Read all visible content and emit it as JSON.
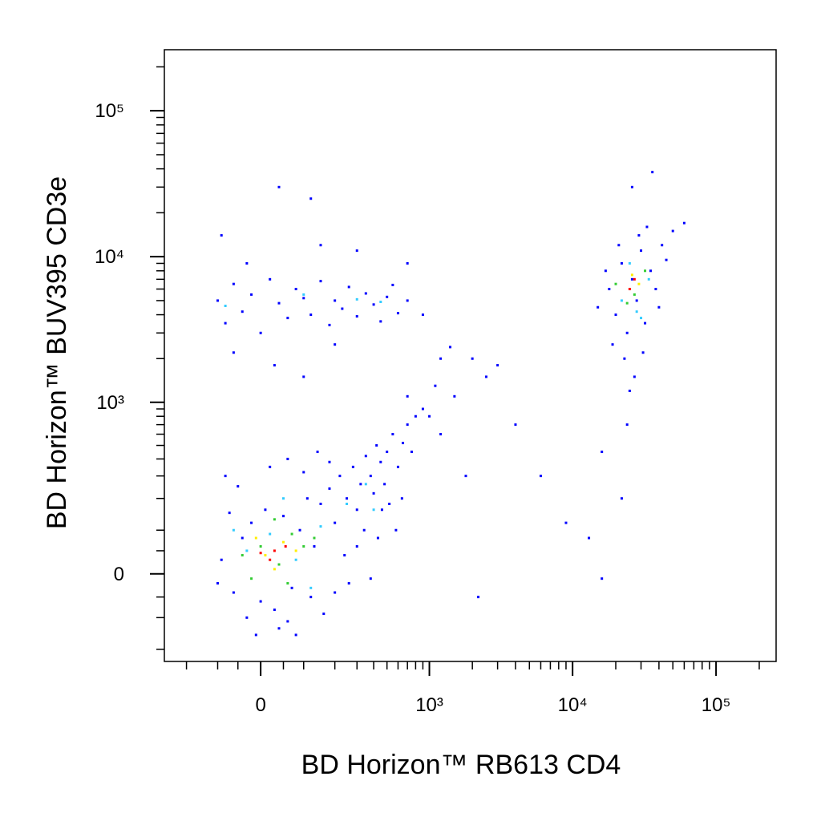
{
  "chart_data": {
    "type": "scatter",
    "xlabel": "BD Horizon™ RB613 CD4",
    "ylabel": "BD Horizon™ BUV395 CD3e",
    "xscale": "biexponential",
    "yscale": "biexponential",
    "xlim": [
      -300,
      262144
    ],
    "ylim": [
      -250,
      262144
    ],
    "xticks": [
      0,
      {
        "value": 1000,
        "label": "10³"
      },
      {
        "value": 10000,
        "label": "10⁴"
      },
      {
        "value": 100000,
        "label": "10⁵"
      }
    ],
    "yticks": [
      0,
      {
        "value": 1000,
        "label": "10³"
      },
      {
        "value": 10000,
        "label": "10⁴"
      },
      {
        "value": 100000,
        "label": "10⁵"
      }
    ],
    "xminorticks": [
      -200,
      -100,
      -50,
      50,
      100,
      200,
      300,
      400,
      500,
      600,
      700,
      800,
      900,
      2000,
      3000,
      4000,
      5000,
      6000,
      7000,
      8000,
      9000,
      20000,
      30000,
      40000,
      50000,
      60000,
      70000,
      80000,
      90000,
      200000
    ],
    "yminorticks": [
      -200,
      -100,
      -50,
      50,
      100,
      200,
      300,
      400,
      500,
      600,
      700,
      800,
      900,
      2000,
      3000,
      4000,
      5000,
      6000,
      7000,
      8000,
      9000,
      20000,
      30000,
      40000,
      50000,
      60000,
      70000,
      80000,
      90000,
      200000
    ],
    "series": [
      {
        "color": "#0000ff",
        "x": [
          -90,
          -60,
          -40,
          -20,
          0,
          10,
          30,
          50,
          70,
          90,
          110,
          130,
          -70,
          -100,
          -30,
          60,
          120,
          150,
          180,
          200,
          220,
          250,
          280,
          300,
          320,
          350,
          380,
          400,
          420,
          450,
          480,
          500,
          550,
          600,
          650,
          700,
          750,
          800,
          -50,
          -80,
          20,
          60,
          100,
          140,
          180,
          40,
          -10,
          80,
          160,
          200,
          240,
          260,
          300,
          340,
          380,
          430,
          460,
          520,
          580,
          640,
          900,
          1200,
          1500,
          2000,
          2500,
          3000,
          1800,
          2200,
          4000,
          6000,
          9000,
          13000,
          16000,
          16000,
          22000,
          1100,
          1400,
          700,
          1000,
          -100,
          -80,
          -60,
          -40,
          -20,
          0,
          20,
          40,
          60,
          80,
          100,
          120,
          150,
          180,
          200,
          230,
          260,
          300,
          350,
          400,
          450,
          500,
          550,
          600,
          700,
          -60,
          30,
          100,
          200,
          -30,
          150,
          300,
          -90,
          40,
          120,
          700,
          900,
          1200,
          18000,
          20000,
          22000,
          24000,
          26000,
          28000,
          30000,
          32000,
          35000,
          38000,
          40000,
          45000,
          19000,
          23000,
          27000,
          25000,
          21000,
          29000,
          33000,
          50000,
          60000,
          36000,
          26000,
          15000,
          42000,
          17000,
          31000,
          24000
        ],
        "values": [
          30,
          -40,
          80,
          120,
          -60,
          160,
          -80,
          140,
          -30,
          100,
          200,
          60,
          150,
          -20,
          -100,
          -110,
          -50,
          180,
          240,
          120,
          300,
          200,
          350,
          160,
          260,
          420,
          300,
          220,
          500,
          380,
          260,
          450,
          600,
          350,
          520,
          700,
          450,
          800,
          250,
          300,
          350,
          400,
          320,
          450,
          380,
          -130,
          -150,
          -150,
          -90,
          -40,
          40,
          -20,
          60,
          100,
          -10,
          80,
          160,
          180,
          100,
          200,
          900,
          600,
          1100,
          2000,
          1500,
          1800,
          300,
          -50,
          700,
          300,
          120,
          80,
          -10,
          450,
          200,
          1300,
          2400,
          1100,
          800,
          5000,
          3500,
          6500,
          4200,
          5500,
          3000,
          7000,
          4800,
          3800,
          6000,
          5200,
          4000,
          6800,
          3400,
          5000,
          4400,
          6200,
          3900,
          5600,
          4700,
          3600,
          5300,
          6400,
          4100,
          5000,
          2200,
          1800,
          1500,
          2500,
          9000,
          12000,
          11000,
          14000,
          30000,
          25000,
          9000,
          4000,
          2000,
          6000,
          4000,
          9000,
          3000,
          7000,
          5000,
          11000,
          3500,
          8000,
          6000,
          4500,
          9500,
          2500,
          2000,
          1500,
          1200,
          12000,
          14000,
          16000,
          15000,
          17000,
          38000,
          30000,
          4500,
          12000,
          8000,
          2200,
          700
        ]
      },
      {
        "color": "#33ccff",
        "x": [
          -30,
          20,
          80,
          150,
          250,
          350,
          400,
          120,
          -60,
          50,
          -80,
          100,
          300,
          450,
          22000,
          28000,
          34000,
          25000,
          30000
        ],
        "values": [
          50,
          90,
          30,
          110,
          180,
          260,
          160,
          -30,
          100,
          200,
          4600,
          5500,
          5100,
          4900,
          5000,
          4200,
          7000,
          9000,
          3800
        ]
      },
      {
        "color": "#33cc33",
        "x": [
          0,
          40,
          70,
          -40,
          100,
          30,
          -20,
          130,
          60,
          20000,
          27000,
          32000,
          24000
        ],
        "values": [
          60,
          20,
          90,
          40,
          60,
          130,
          -10,
          80,
          -20,
          6500,
          5500,
          8000,
          4800
        ]
      },
      {
        "color": "#ffee00",
        "x": [
          10,
          50,
          -10,
          80,
          30,
          26000,
          29000
        ],
        "values": [
          40,
          70,
          80,
          50,
          10,
          7500,
          6500
        ]
      },
      {
        "color": "#ff0000",
        "x": [
          30,
          20,
          55,
          0,
          27000,
          25000
        ],
        "values": [
          50,
          30,
          60,
          45,
          7000,
          6000
        ]
      }
    ]
  }
}
